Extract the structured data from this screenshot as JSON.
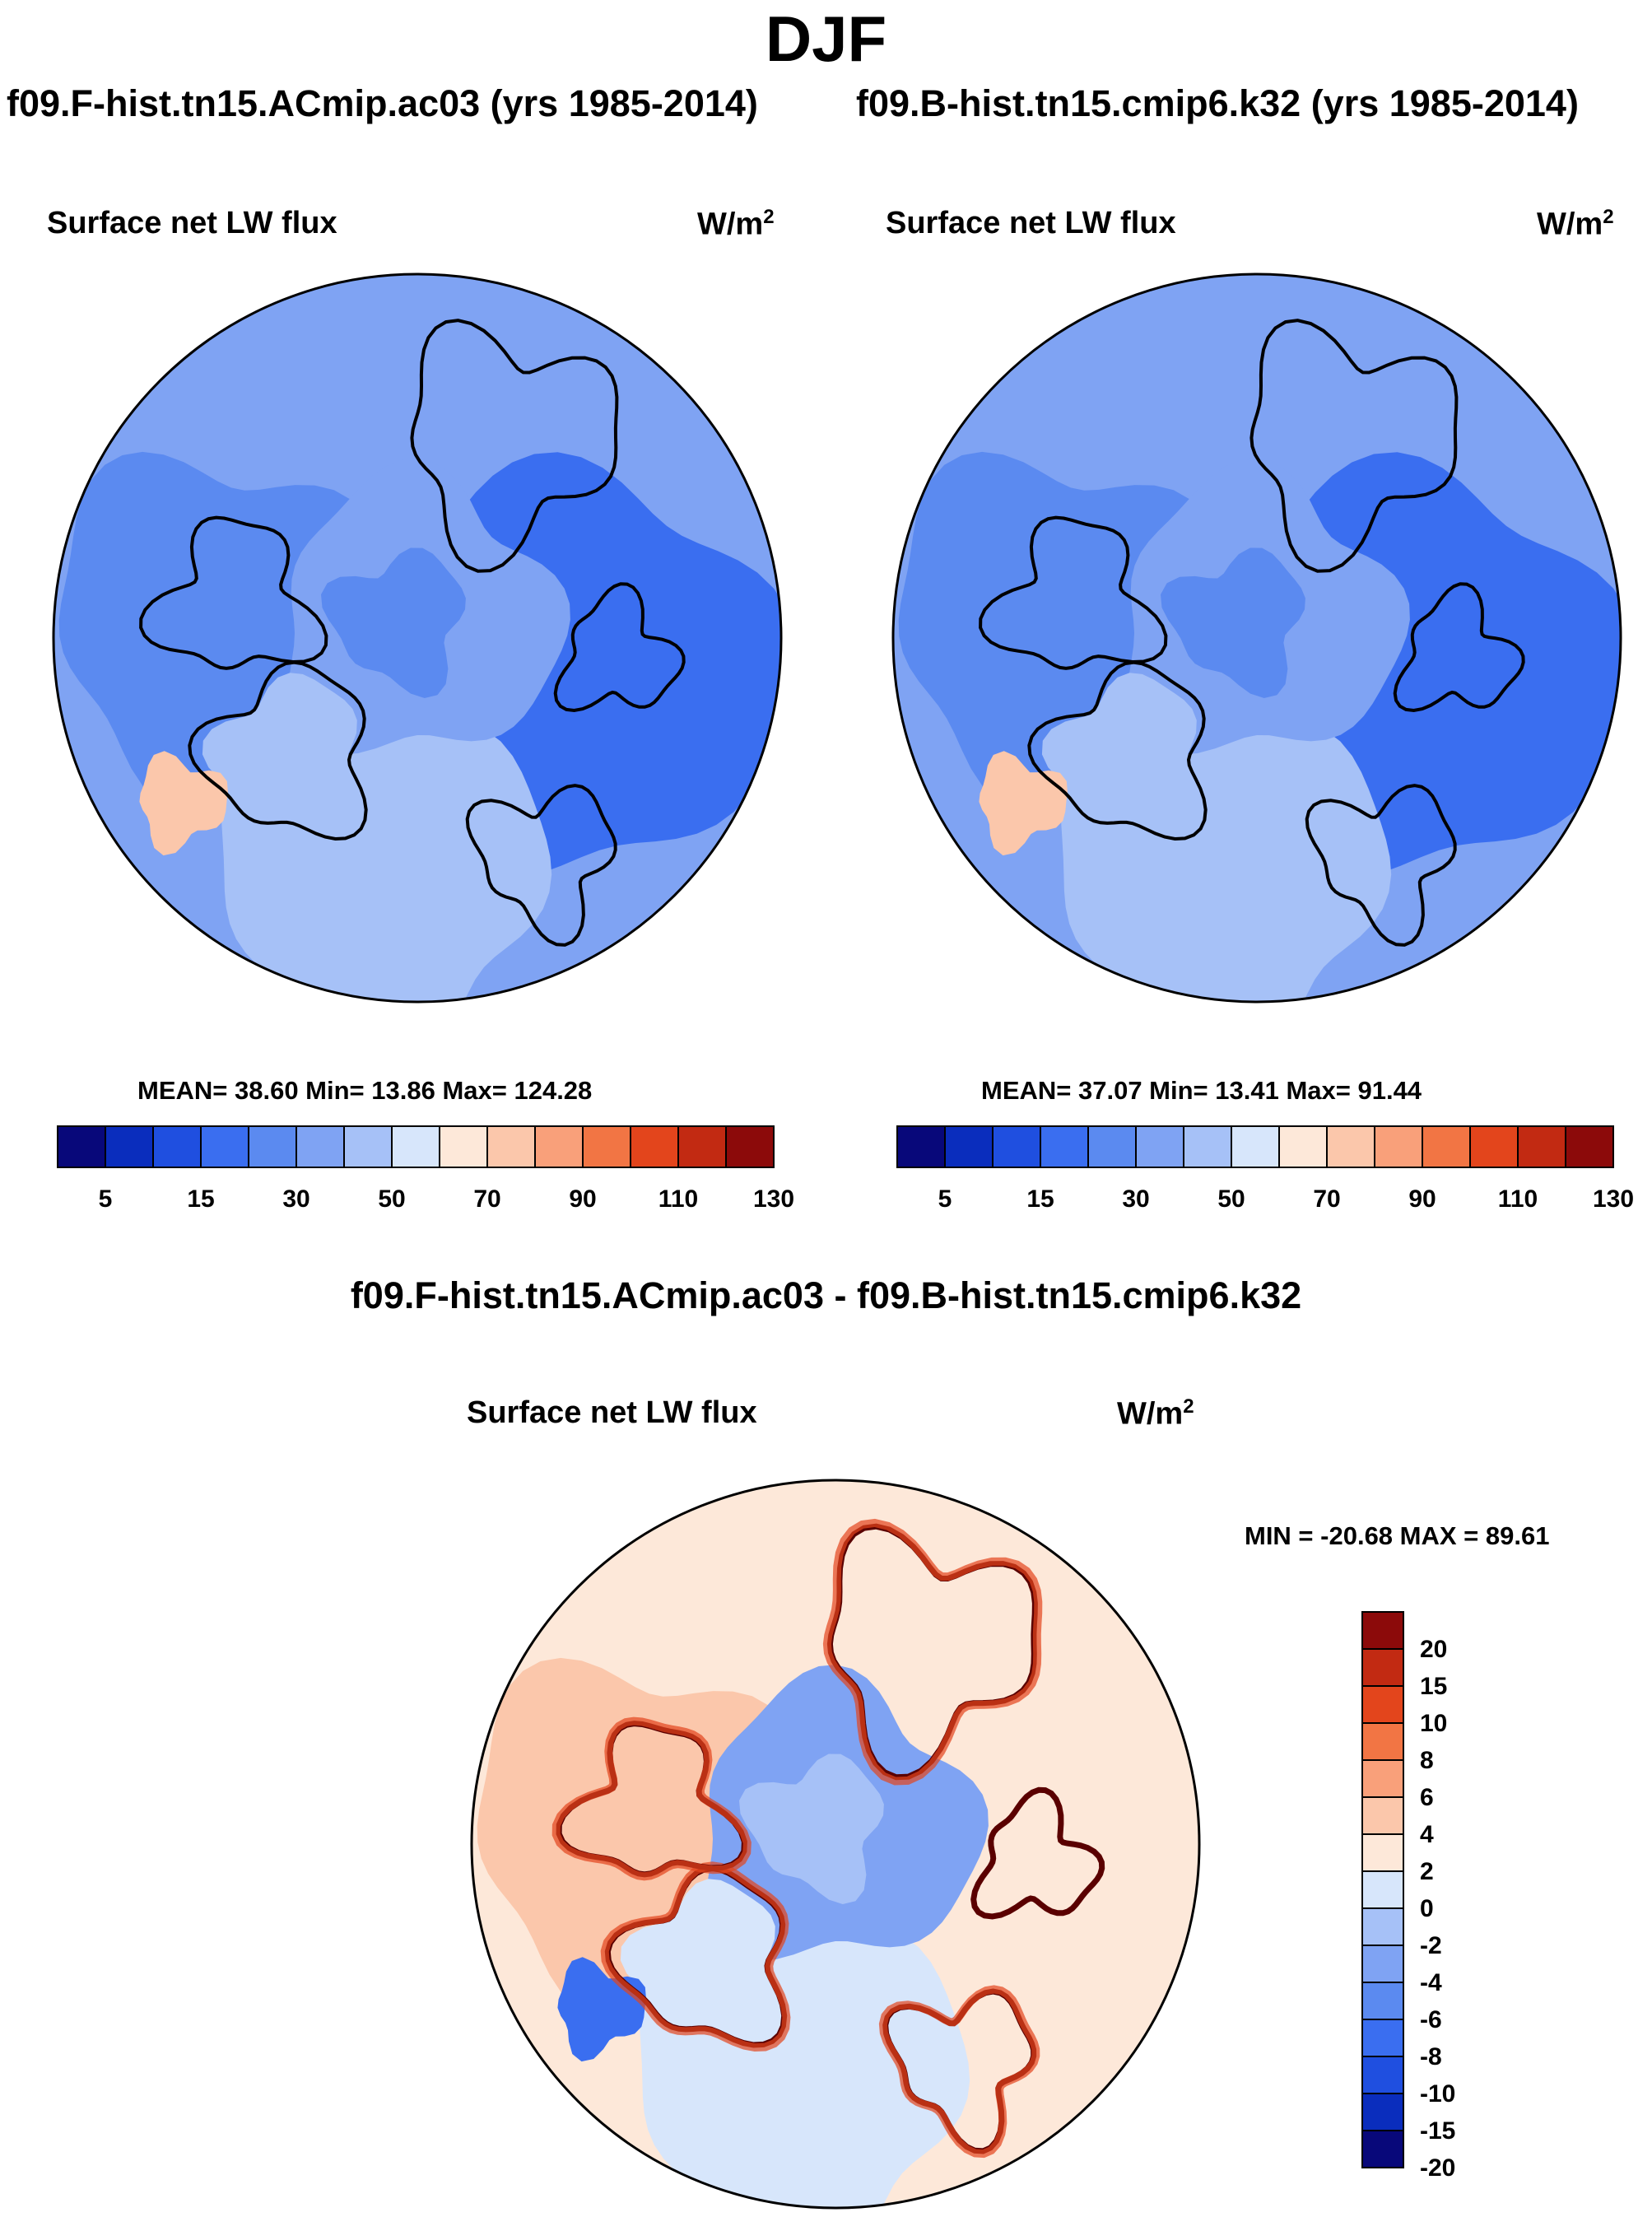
{
  "title": "DJF",
  "panels": [
    {
      "case_title": "f09.F-hist.tn15.ACmip.ac03 (yrs 1985-2014)",
      "variable": "Surface net LW flux",
      "units_base": "W/m",
      "units_exp": "2",
      "stats": "MEAN=  38.60  Min=  13.86  Max= 124.28"
    },
    {
      "case_title": "f09.B-hist.tn15.cmip6.k32 (yrs 1985-2014)",
      "variable": "Surface net LW flux",
      "units_base": "W/m",
      "units_exp": "2",
      "stats": "MEAN=  37.07  Min=  13.41  Max=  91.44"
    }
  ],
  "diff_panel": {
    "title": "f09.F-hist.tn15.ACmip.ac03 - f09.B-hist.tn15.cmip6.k32",
    "variable": "Surface net LW flux",
    "units_base": "W/m",
    "units_exp": "2",
    "minmax": "MIN = -20.68 MAX =  89.61"
  },
  "chart_data": [
    {
      "type": "heatmap",
      "projection": "north polar stereographic",
      "title": "Surface net LW flux",
      "units": "W/m2",
      "mean": 38.6,
      "min": 13.86,
      "max": 124.28,
      "colorbar": {
        "orientation": "horizontal",
        "colors": [
          "#08087a",
          "#0a2dbd",
          "#1f4fe0",
          "#3a6ef0",
          "#5b8af0",
          "#7fa3f3",
          "#a6c1f7",
          "#d7e6fb",
          "#fde8d9",
          "#fbc7ab",
          "#f9a07a",
          "#f27544",
          "#e3451c",
          "#c22a12",
          "#8c0a0a"
        ],
        "labels": [
          "5",
          "15",
          "30",
          "50",
          "70",
          "90",
          "110",
          "130"
        ]
      }
    },
    {
      "type": "heatmap",
      "projection": "north polar stereographic",
      "title": "Surface net LW flux",
      "units": "W/m2",
      "mean": 37.07,
      "min": 13.41,
      "max": 91.44,
      "colorbar": {
        "orientation": "horizontal",
        "colors": [
          "#08087a",
          "#0a2dbd",
          "#1f4fe0",
          "#3a6ef0",
          "#5b8af0",
          "#7fa3f3",
          "#a6c1f7",
          "#d7e6fb",
          "#fde8d9",
          "#fbc7ab",
          "#f9a07a",
          "#f27544",
          "#e3451c",
          "#c22a12",
          "#8c0a0a"
        ],
        "labels": [
          "5",
          "15",
          "30",
          "50",
          "70",
          "90",
          "110",
          "130"
        ]
      }
    },
    {
      "type": "heatmap",
      "projection": "north polar stereographic",
      "title": "Surface net LW flux (difference)",
      "units": "W/m2",
      "min": -20.68,
      "max": 89.61,
      "colorbar": {
        "orientation": "vertical",
        "colors": [
          "#8c0a0a",
          "#c22a12",
          "#e3451c",
          "#f27544",
          "#f9a07a",
          "#fbc7ab",
          "#fde8d9",
          "#d7e6fb",
          "#a6c1f7",
          "#7fa3f3",
          "#5b8af0",
          "#3a6ef0",
          "#1f4fe0",
          "#0a2dbd",
          "#08087a"
        ],
        "labels": [
          "20",
          "15",
          "10",
          "8",
          "6",
          "4",
          "2",
          "0",
          "-2",
          "-4",
          "-6",
          "-8",
          "-10",
          "-15",
          "-20"
        ]
      }
    }
  ]
}
